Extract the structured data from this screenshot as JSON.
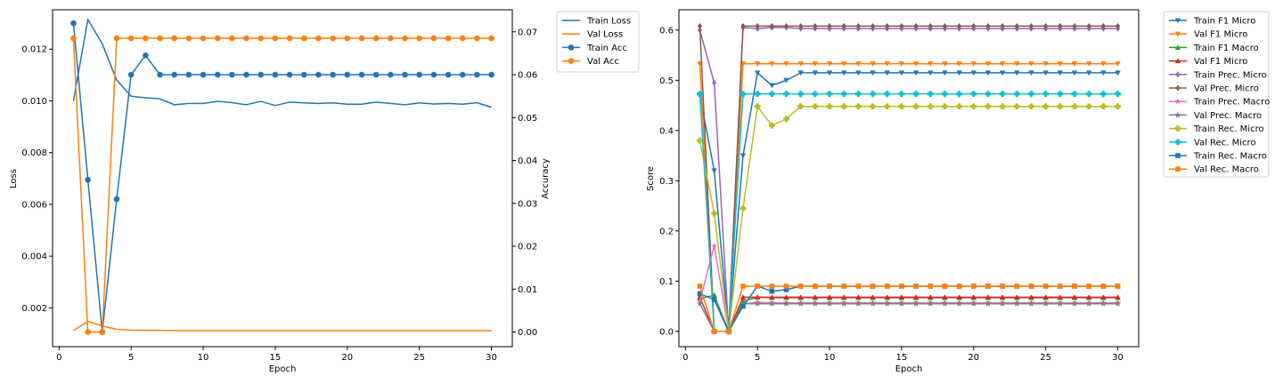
{
  "chart_data": [
    {
      "type": "line",
      "xlabel": "Epoch",
      "ylabel": "Loss",
      "y2label": "Accuracy",
      "xlim": [
        -0.45,
        31.45
      ],
      "ylim": [
        0.0005,
        0.01352
      ],
      "y2lim": [
        -0.00342,
        0.07514
      ],
      "xticks": [
        0,
        5,
        10,
        15,
        20,
        25,
        30
      ],
      "yticks": [
        0.002,
        0.004,
        0.006,
        0.008,
        0.01,
        0.012
      ],
      "ytick_labels": [
        "0.002",
        "0.004",
        "0.006",
        "0.008",
        "0.010",
        "0.012"
      ],
      "y2ticks": [
        0.0,
        0.01,
        0.02,
        0.03,
        0.04,
        0.05,
        0.06,
        0.07
      ],
      "y2tick_labels": [
        "0.00",
        "0.01",
        "0.02",
        "0.03",
        "0.04",
        "0.05",
        "0.06",
        "0.07"
      ],
      "legend_position": "outside-upper-right",
      "grid": false,
      "x": [
        1,
        2,
        3,
        4,
        5,
        6,
        7,
        8,
        9,
        10,
        11,
        12,
        13,
        14,
        15,
        16,
        17,
        18,
        19,
        20,
        21,
        22,
        23,
        24,
        25,
        26,
        27,
        28,
        29,
        30
      ],
      "series": [
        {
          "name": "Train Loss",
          "axis": "left",
          "color": "#1f77b4",
          "marker": "none",
          "values": [
            0.01,
            0.01315,
            0.0122,
            0.0108,
            0.01018,
            0.01012,
            0.01008,
            0.00985,
            0.0099,
            0.0099,
            0.00998,
            0.00993,
            0.00985,
            0.00998,
            0.00982,
            0.00995,
            0.00992,
            0.0099,
            0.00992,
            0.00987,
            0.00987,
            0.00995,
            0.0099,
            0.00985,
            0.00992,
            0.00988,
            0.0099,
            0.00987,
            0.00993,
            0.00975
          ]
        },
        {
          "name": "Val Loss",
          "axis": "left",
          "color": "#ff7f0e",
          "marker": "none",
          "values": [
            0.00112,
            0.00148,
            0.0013,
            0.00117,
            0.00114,
            0.00113,
            0.00113,
            0.00112,
            0.00112,
            0.00112,
            0.00112,
            0.00112,
            0.00112,
            0.00112,
            0.00112,
            0.00112,
            0.00112,
            0.00112,
            0.00112,
            0.00112,
            0.00112,
            0.00112,
            0.00112,
            0.00112,
            0.00112,
            0.00112,
            0.00112,
            0.00112,
            0.00112,
            0.00112
          ]
        },
        {
          "name": "Train Acc",
          "axis": "right",
          "color": "#1f77b4",
          "marker": "circle",
          "values": [
            0.072,
            0.0355,
            0.0,
            0.031,
            0.06,
            0.0645,
            0.06,
            0.06,
            0.06,
            0.06,
            0.06,
            0.06,
            0.06,
            0.06,
            0.06,
            0.06,
            0.06,
            0.06,
            0.06,
            0.06,
            0.06,
            0.06,
            0.06,
            0.06,
            0.06,
            0.06,
            0.06,
            0.06,
            0.06,
            0.06
          ]
        },
        {
          "name": "Val Acc",
          "axis": "right",
          "color": "#ff7f0e",
          "marker": "circle",
          "values": [
            0.0685,
            0.0,
            0.0,
            0.0685,
            0.0685,
            0.0685,
            0.0685,
            0.0685,
            0.0685,
            0.0685,
            0.0685,
            0.0685,
            0.0685,
            0.0685,
            0.0685,
            0.0685,
            0.0685,
            0.0685,
            0.0685,
            0.0685,
            0.0685,
            0.0685,
            0.0685,
            0.0685,
            0.0685,
            0.0685,
            0.0685,
            0.0685,
            0.0685,
            0.0685
          ]
        }
      ]
    },
    {
      "type": "line",
      "xlabel": "Epoch",
      "ylabel": "Score",
      "xlim": [
        -0.45,
        31.45
      ],
      "ylim": [
        -0.0305,
        0.6405
      ],
      "xticks": [
        0,
        5,
        10,
        15,
        20,
        25,
        30
      ],
      "yticks": [
        0.0,
        0.1,
        0.2,
        0.3,
        0.4,
        0.5,
        0.6
      ],
      "ytick_labels": [
        "0.0",
        "0.1",
        "0.2",
        "0.3",
        "0.4",
        "0.5",
        "0.6"
      ],
      "legend_position": "outside-upper-right",
      "grid": false,
      "x": [
        1,
        2,
        3,
        4,
        5,
        6,
        7,
        8,
        9,
        10,
        11,
        12,
        13,
        14,
        15,
        16,
        17,
        18,
        19,
        20,
        21,
        22,
        23,
        24,
        25,
        26,
        27,
        28,
        29,
        30
      ],
      "series": [
        {
          "name": "Train F1 Micro",
          "color": "#1f77b4",
          "marker": "triangle-down",
          "values": [
            0.47,
            0.32,
            0.0,
            0.35,
            0.515,
            0.49,
            0.5,
            0.515,
            0.515,
            0.515,
            0.515,
            0.515,
            0.515,
            0.515,
            0.515,
            0.515,
            0.515,
            0.515,
            0.515,
            0.515,
            0.515,
            0.515,
            0.515,
            0.515,
            0.515,
            0.515,
            0.515,
            0.515,
            0.515,
            0.515
          ]
        },
        {
          "name": "Val F1 Micro",
          "color": "#ff7f0e",
          "marker": "triangle-down",
          "values": [
            0.533,
            0.0,
            0.0,
            0.533,
            0.533,
            0.533,
            0.533,
            0.533,
            0.533,
            0.533,
            0.533,
            0.533,
            0.533,
            0.533,
            0.533,
            0.533,
            0.533,
            0.533,
            0.533,
            0.533,
            0.533,
            0.533,
            0.533,
            0.533,
            0.533,
            0.533,
            0.533,
            0.533,
            0.533,
            0.533
          ]
        },
        {
          "name": "Train F1 Macro",
          "color": "#2ca02c",
          "marker": "triangle-up",
          "values": [
            0.065,
            0.072,
            0.0,
            0.06,
            0.068,
            0.067,
            0.067,
            0.067,
            0.067,
            0.067,
            0.067,
            0.067,
            0.067,
            0.067,
            0.067,
            0.067,
            0.067,
            0.067,
            0.067,
            0.067,
            0.067,
            0.067,
            0.067,
            0.067,
            0.067,
            0.067,
            0.067,
            0.067,
            0.067,
            0.067
          ]
        },
        {
          "name": "Val F1 Micro",
          "color": "#d62728",
          "marker": "triangle-up",
          "values": [
            0.068,
            0.0,
            0.0,
            0.068,
            0.068,
            0.068,
            0.068,
            0.068,
            0.068,
            0.068,
            0.068,
            0.068,
            0.068,
            0.068,
            0.068,
            0.068,
            0.068,
            0.068,
            0.068,
            0.068,
            0.068,
            0.068,
            0.068,
            0.068,
            0.068,
            0.068,
            0.068,
            0.068,
            0.068,
            0.068
          ]
        },
        {
          "name": "Train Prec. Micro",
          "color": "#9467bd",
          "marker": "diamond",
          "values": [
            0.6,
            0.495,
            0.0,
            0.605,
            0.603,
            0.605,
            0.605,
            0.603,
            0.603,
            0.603,
            0.603,
            0.603,
            0.603,
            0.603,
            0.603,
            0.603,
            0.603,
            0.603,
            0.603,
            0.603,
            0.603,
            0.603,
            0.603,
            0.603,
            0.603,
            0.603,
            0.603,
            0.603,
            0.603,
            0.603
          ]
        },
        {
          "name": "Val Prec. Micro",
          "color": "#8c564b",
          "marker": "diamond",
          "values": [
            0.608,
            0.0,
            0.0,
            0.608,
            0.608,
            0.608,
            0.608,
            0.608,
            0.608,
            0.608,
            0.608,
            0.608,
            0.608,
            0.608,
            0.608,
            0.608,
            0.608,
            0.608,
            0.608,
            0.608,
            0.608,
            0.608,
            0.608,
            0.608,
            0.608,
            0.608,
            0.608,
            0.608,
            0.608,
            0.608
          ]
        },
        {
          "name": "Train Prec. Macro",
          "color": "#e377c2",
          "marker": "star",
          "values": [
            0.06,
            0.17,
            0.0,
            0.055,
            0.058,
            0.057,
            0.057,
            0.057,
            0.057,
            0.057,
            0.057,
            0.057,
            0.057,
            0.057,
            0.057,
            0.057,
            0.057,
            0.057,
            0.057,
            0.057,
            0.057,
            0.057,
            0.057,
            0.057,
            0.057,
            0.057,
            0.057,
            0.057,
            0.057,
            0.057
          ]
        },
        {
          "name": "Val Prec. Macro",
          "color": "#7f7f7f",
          "marker": "star",
          "values": [
            0.055,
            0.0,
            0.0,
            0.055,
            0.055,
            0.055,
            0.055,
            0.055,
            0.055,
            0.055,
            0.055,
            0.055,
            0.055,
            0.055,
            0.055,
            0.055,
            0.055,
            0.055,
            0.055,
            0.055,
            0.055,
            0.055,
            0.055,
            0.055,
            0.055,
            0.055,
            0.055,
            0.055,
            0.055,
            0.055
          ]
        },
        {
          "name": "Train Rec. Micro",
          "color": "#bcbd22",
          "marker": "plus",
          "values": [
            0.38,
            0.235,
            0.0,
            0.245,
            0.448,
            0.41,
            0.423,
            0.448,
            0.448,
            0.448,
            0.448,
            0.448,
            0.448,
            0.448,
            0.448,
            0.448,
            0.448,
            0.448,
            0.448,
            0.448,
            0.448,
            0.448,
            0.448,
            0.448,
            0.448,
            0.448,
            0.448,
            0.448,
            0.448,
            0.448
          ]
        },
        {
          "name": "Val Rec. Micro",
          "color": "#17becf",
          "marker": "plus",
          "values": [
            0.473,
            0.0,
            0.0,
            0.473,
            0.473,
            0.473,
            0.473,
            0.473,
            0.473,
            0.473,
            0.473,
            0.473,
            0.473,
            0.473,
            0.473,
            0.473,
            0.473,
            0.473,
            0.473,
            0.473,
            0.473,
            0.473,
            0.473,
            0.473,
            0.473,
            0.473,
            0.473,
            0.473,
            0.473,
            0.473
          ]
        },
        {
          "name": "Train Rec. Macro",
          "color": "#1f77b4",
          "marker": "square",
          "values": [
            0.075,
            0.063,
            0.0,
            0.05,
            0.09,
            0.08,
            0.083,
            0.09,
            0.09,
            0.09,
            0.09,
            0.09,
            0.09,
            0.09,
            0.09,
            0.09,
            0.09,
            0.09,
            0.09,
            0.09,
            0.09,
            0.09,
            0.09,
            0.09,
            0.09,
            0.09,
            0.09,
            0.09,
            0.09,
            0.09
          ]
        },
        {
          "name": "Val Rec. Macro",
          "color": "#ff7f0e",
          "marker": "square",
          "values": [
            0.09,
            0.0,
            0.0,
            0.09,
            0.09,
            0.09,
            0.09,
            0.09,
            0.09,
            0.09,
            0.09,
            0.09,
            0.09,
            0.09,
            0.09,
            0.09,
            0.09,
            0.09,
            0.09,
            0.09,
            0.09,
            0.09,
            0.09,
            0.09,
            0.09,
            0.09,
            0.09,
            0.09,
            0.09,
            0.09
          ]
        }
      ]
    }
  ]
}
